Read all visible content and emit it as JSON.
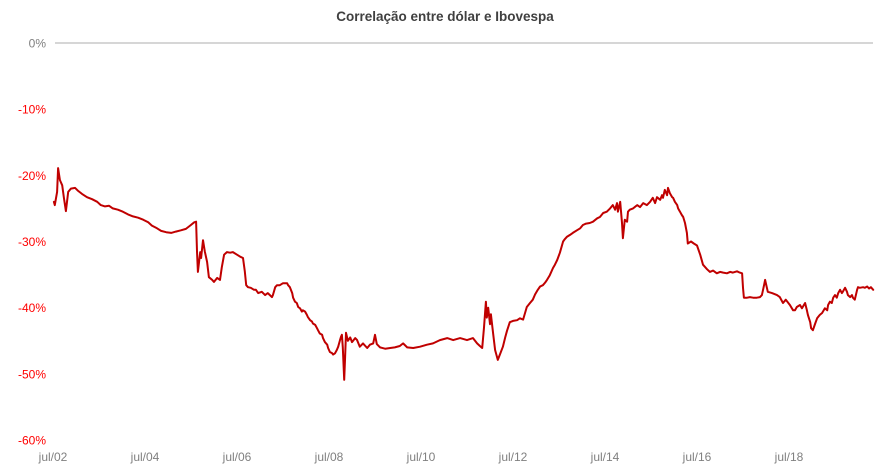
{
  "chart_data": {
    "type": "line",
    "title": "Correlação entre dólar e Ibovespa",
    "xlabel": "",
    "ylabel": "",
    "legend_position": "none",
    "grid": "horizontal line at 0% only",
    "xlim": [
      2002.4,
      2020.4
    ],
    "ylim": [
      -60,
      0
    ],
    "x_ticks": [
      {
        "t": 2002.5,
        "label": "jul/02"
      },
      {
        "t": 2004.5,
        "label": "jul/04"
      },
      {
        "t": 2006.5,
        "label": "jul/06"
      },
      {
        "t": 2008.5,
        "label": "jul/08"
      },
      {
        "t": 2010.5,
        "label": "jul/10"
      },
      {
        "t": 2012.5,
        "label": "jul/12"
      },
      {
        "t": 2014.5,
        "label": "jul/14"
      },
      {
        "t": 2016.5,
        "label": "jul/16"
      },
      {
        "t": 2018.5,
        "label": "jul/18"
      }
    ],
    "y_ticks": [
      {
        "v": 0,
        "label": "0%"
      },
      {
        "v": -10,
        "label": "-10%"
      },
      {
        "v": -20,
        "label": "-20%"
      },
      {
        "v": -30,
        "label": "-30%"
      },
      {
        "v": -40,
        "label": "-40%"
      },
      {
        "v": -50,
        "label": "-50%"
      },
      {
        "v": -60,
        "label": "-60%"
      }
    ],
    "colors": {
      "line": "#c00000",
      "y_tick_negative": "#ff0000",
      "y_tick_zero": "#808080",
      "x_tick": "#808080",
      "title": "#404040",
      "gridline": "#d6d6d6",
      "background": "#ffffff"
    },
    "points": [
      [
        2002.52,
        -24.0
      ],
      [
        2002.54,
        -24.5
      ],
      [
        2002.59,
        -22.5
      ],
      [
        2002.61,
        -18.9
      ],
      [
        2002.65,
        -20.7
      ],
      [
        2002.7,
        -21.5
      ],
      [
        2002.74,
        -23.5
      ],
      [
        2002.78,
        -25.4
      ],
      [
        2002.83,
        -22.5
      ],
      [
        2002.89,
        -22.0
      ],
      [
        2002.98,
        -21.9
      ],
      [
        2003.04,
        -22.3
      ],
      [
        2003.13,
        -22.8
      ],
      [
        2003.24,
        -23.3
      ],
      [
        2003.35,
        -23.6
      ],
      [
        2003.46,
        -24.0
      ],
      [
        2003.54,
        -24.5
      ],
      [
        2003.63,
        -24.7
      ],
      [
        2003.72,
        -24.6
      ],
      [
        2003.8,
        -25.0
      ],
      [
        2003.91,
        -25.2
      ],
      [
        2004.02,
        -25.5
      ],
      [
        2004.13,
        -25.9
      ],
      [
        2004.24,
        -26.2
      ],
      [
        2004.35,
        -26.4
      ],
      [
        2004.46,
        -26.7
      ],
      [
        2004.57,
        -27.1
      ],
      [
        2004.65,
        -27.6
      ],
      [
        2004.76,
        -28.0
      ],
      [
        2004.85,
        -28.4
      ],
      [
        2004.96,
        -28.6
      ],
      [
        2005.07,
        -28.7
      ],
      [
        2005.17,
        -28.5
      ],
      [
        2005.28,
        -28.3
      ],
      [
        2005.39,
        -28.1
      ],
      [
        2005.48,
        -27.6
      ],
      [
        2005.57,
        -27.1
      ],
      [
        2005.61,
        -27.0
      ],
      [
        2005.63,
        -31.5
      ],
      [
        2005.65,
        -34.6
      ],
      [
        2005.7,
        -31.6
      ],
      [
        2005.72,
        -32.5
      ],
      [
        2005.76,
        -29.8
      ],
      [
        2005.8,
        -31.5
      ],
      [
        2005.85,
        -33.1
      ],
      [
        2005.89,
        -35.4
      ],
      [
        2005.96,
        -35.8
      ],
      [
        2006.0,
        -36.1
      ],
      [
        2006.07,
        -35.5
      ],
      [
        2006.13,
        -35.8
      ],
      [
        2006.17,
        -33.9
      ],
      [
        2006.22,
        -32.0
      ],
      [
        2006.28,
        -31.6
      ],
      [
        2006.35,
        -31.7
      ],
      [
        2006.41,
        -31.6
      ],
      [
        2006.5,
        -32.0
      ],
      [
        2006.57,
        -32.3
      ],
      [
        2006.63,
        -32.5
      ],
      [
        2006.67,
        -34.5
      ],
      [
        2006.7,
        -36.6
      ],
      [
        2006.74,
        -36.9
      ],
      [
        2006.8,
        -37.0
      ],
      [
        2006.87,
        -37.3
      ],
      [
        2006.91,
        -37.3
      ],
      [
        2006.96,
        -37.8
      ],
      [
        2007.04,
        -37.6
      ],
      [
        2007.11,
        -38.1
      ],
      [
        2007.17,
        -37.8
      ],
      [
        2007.26,
        -38.4
      ],
      [
        2007.28,
        -38.1
      ],
      [
        2007.33,
        -36.9
      ],
      [
        2007.37,
        -36.6
      ],
      [
        2007.43,
        -36.6
      ],
      [
        2007.5,
        -36.3
      ],
      [
        2007.59,
        -36.3
      ],
      [
        2007.61,
        -36.6
      ],
      [
        2007.65,
        -36.9
      ],
      [
        2007.7,
        -37.8
      ],
      [
        2007.72,
        -38.5
      ],
      [
        2007.76,
        -39.1
      ],
      [
        2007.8,
        -39.3
      ],
      [
        2007.83,
        -39.9
      ],
      [
        2007.87,
        -40.1
      ],
      [
        2007.91,
        -40.6
      ],
      [
        2007.93,
        -40.4
      ],
      [
        2007.98,
        -40.6
      ],
      [
        2008.02,
        -41.1
      ],
      [
        2008.04,
        -41.4
      ],
      [
        2008.09,
        -41.9
      ],
      [
        2008.13,
        -42.1
      ],
      [
        2008.15,
        -42.4
      ],
      [
        2008.2,
        -42.6
      ],
      [
        2008.24,
        -43.1
      ],
      [
        2008.26,
        -43.4
      ],
      [
        2008.3,
        -43.9
      ],
      [
        2008.35,
        -44.1
      ],
      [
        2008.37,
        -44.6
      ],
      [
        2008.41,
        -45.2
      ],
      [
        2008.46,
        -45.6
      ],
      [
        2008.48,
        -46.1
      ],
      [
        2008.52,
        -46.7
      ],
      [
        2008.57,
        -46.9
      ],
      [
        2008.59,
        -47.1
      ],
      [
        2008.63,
        -46.9
      ],
      [
        2008.67,
        -46.4
      ],
      [
        2008.7,
        -45.9
      ],
      [
        2008.74,
        -44.9
      ],
      [
        2008.76,
        -44.4
      ],
      [
        2008.78,
        -44.1
      ],
      [
        2008.8,
        -46.0
      ],
      [
        2008.83,
        -50.9
      ],
      [
        2008.85,
        -47.5
      ],
      [
        2008.87,
        -43.8
      ],
      [
        2008.91,
        -45.0
      ],
      [
        2008.96,
        -44.5
      ],
      [
        2009.0,
        -45.2
      ],
      [
        2009.07,
        -44.6
      ],
      [
        2009.11,
        -44.9
      ],
      [
        2009.17,
        -45.9
      ],
      [
        2009.24,
        -45.4
      ],
      [
        2009.33,
        -46.1
      ],
      [
        2009.39,
        -45.6
      ],
      [
        2009.46,
        -45.4
      ],
      [
        2009.5,
        -44.1
      ],
      [
        2009.54,
        -45.5
      ],
      [
        2009.61,
        -46.0
      ],
      [
        2009.72,
        -46.2
      ],
      [
        2009.83,
        -46.1
      ],
      [
        2009.93,
        -46.0
      ],
      [
        2010.04,
        -45.8
      ],
      [
        2010.11,
        -45.4
      ],
      [
        2010.2,
        -46.0
      ],
      [
        2010.33,
        -46.1
      ],
      [
        2010.48,
        -45.9
      ],
      [
        2010.63,
        -45.6
      ],
      [
        2010.76,
        -45.4
      ],
      [
        2010.91,
        -44.9
      ],
      [
        2011.07,
        -44.6
      ],
      [
        2011.2,
        -44.9
      ],
      [
        2011.35,
        -44.6
      ],
      [
        2011.5,
        -44.9
      ],
      [
        2011.63,
        -44.6
      ],
      [
        2011.72,
        -45.4
      ],
      [
        2011.78,
        -45.8
      ],
      [
        2011.83,
        -46.1
      ],
      [
        2011.87,
        -43.0
      ],
      [
        2011.91,
        -39.1
      ],
      [
        2011.93,
        -41.5
      ],
      [
        2011.96,
        -40.0
      ],
      [
        2012.0,
        -42.5
      ],
      [
        2012.02,
        -41.0
      ],
      [
        2012.07,
        -44.0
      ],
      [
        2012.11,
        -46.4
      ],
      [
        2012.17,
        -47.9
      ],
      [
        2012.22,
        -47.0
      ],
      [
        2012.28,
        -45.9
      ],
      [
        2012.33,
        -44.5
      ],
      [
        2012.37,
        -43.5
      ],
      [
        2012.43,
        -42.2
      ],
      [
        2012.5,
        -42.0
      ],
      [
        2012.59,
        -41.9
      ],
      [
        2012.65,
        -41.6
      ],
      [
        2012.72,
        -41.8
      ],
      [
        2012.8,
        -39.9
      ],
      [
        2012.87,
        -39.3
      ],
      [
        2012.93,
        -38.8
      ],
      [
        2012.98,
        -38.0
      ],
      [
        2013.04,
        -37.3
      ],
      [
        2013.09,
        -36.8
      ],
      [
        2013.15,
        -36.6
      ],
      [
        2013.2,
        -36.2
      ],
      [
        2013.24,
        -35.8
      ],
      [
        2013.3,
        -35.1
      ],
      [
        2013.37,
        -34.0
      ],
      [
        2013.41,
        -33.5
      ],
      [
        2013.46,
        -32.8
      ],
      [
        2013.52,
        -31.7
      ],
      [
        2013.59,
        -30.0
      ],
      [
        2013.63,
        -29.6
      ],
      [
        2013.67,
        -29.3
      ],
      [
        2013.74,
        -29.0
      ],
      [
        2013.8,
        -28.7
      ],
      [
        2013.89,
        -28.3
      ],
      [
        2013.96,
        -28.0
      ],
      [
        2014.02,
        -27.5
      ],
      [
        2014.09,
        -27.3
      ],
      [
        2014.17,
        -27.2
      ],
      [
        2014.24,
        -27.0
      ],
      [
        2014.33,
        -26.5
      ],
      [
        2014.39,
        -26.3
      ],
      [
        2014.46,
        -25.7
      ],
      [
        2014.54,
        -25.5
      ],
      [
        2014.61,
        -25.0
      ],
      [
        2014.67,
        -24.5
      ],
      [
        2014.72,
        -25.2
      ],
      [
        2014.76,
        -24.2
      ],
      [
        2014.78,
        -25.5
      ],
      [
        2014.83,
        -24.0
      ],
      [
        2014.87,
        -27.2
      ],
      [
        2014.89,
        -29.5
      ],
      [
        2014.93,
        -26.7
      ],
      [
        2014.98,
        -27.0
      ],
      [
        2015.0,
        -25.5
      ],
      [
        2015.04,
        -25.2
      ],
      [
        2015.11,
        -25.0
      ],
      [
        2015.2,
        -24.5
      ],
      [
        2015.26,
        -24.8
      ],
      [
        2015.33,
        -24.2
      ],
      [
        2015.41,
        -24.5
      ],
      [
        2015.48,
        -24.0
      ],
      [
        2015.54,
        -23.4
      ],
      [
        2015.59,
        -24.2
      ],
      [
        2015.63,
        -23.3
      ],
      [
        2015.7,
        -23.7
      ],
      [
        2015.74,
        -23.0
      ],
      [
        2015.76,
        -23.4
      ],
      [
        2015.8,
        -22.2
      ],
      [
        2015.85,
        -23.0
      ],
      [
        2015.87,
        -21.9
      ],
      [
        2015.91,
        -22.7
      ],
      [
        2015.96,
        -23.3
      ],
      [
        2015.98,
        -23.4
      ],
      [
        2016.02,
        -24.0
      ],
      [
        2016.07,
        -24.5
      ],
      [
        2016.09,
        -25.0
      ],
      [
        2016.13,
        -25.5
      ],
      [
        2016.17,
        -26.0
      ],
      [
        2016.2,
        -26.3
      ],
      [
        2016.24,
        -27.2
      ],
      [
        2016.28,
        -28.7
      ],
      [
        2016.3,
        -30.3
      ],
      [
        2016.37,
        -30.0
      ],
      [
        2016.43,
        -30.3
      ],
      [
        2016.5,
        -30.6
      ],
      [
        2016.57,
        -32.0
      ],
      [
        2016.63,
        -33.5
      ],
      [
        2016.72,
        -34.2
      ],
      [
        2016.78,
        -34.6
      ],
      [
        2016.85,
        -34.4
      ],
      [
        2016.93,
        -34.8
      ],
      [
        2017.0,
        -34.6
      ],
      [
        2017.07,
        -34.7
      ],
      [
        2017.15,
        -34.8
      ],
      [
        2017.22,
        -34.6
      ],
      [
        2017.28,
        -34.7
      ],
      [
        2017.37,
        -34.5
      ],
      [
        2017.43,
        -34.7
      ],
      [
        2017.48,
        -34.8
      ],
      [
        2017.5,
        -37.0
      ],
      [
        2017.52,
        -38.5
      ],
      [
        2017.59,
        -38.5
      ],
      [
        2017.65,
        -38.4
      ],
      [
        2017.72,
        -38.5
      ],
      [
        2017.8,
        -38.5
      ],
      [
        2017.87,
        -38.4
      ],
      [
        2017.91,
        -38.1
      ],
      [
        2017.96,
        -36.5
      ],
      [
        2017.98,
        -35.8
      ],
      [
        2018.02,
        -37.0
      ],
      [
        2018.04,
        -37.6
      ],
      [
        2018.13,
        -37.8
      ],
      [
        2018.24,
        -38.1
      ],
      [
        2018.3,
        -38.4
      ],
      [
        2018.37,
        -39.3
      ],
      [
        2018.43,
        -38.8
      ],
      [
        2018.52,
        -39.6
      ],
      [
        2018.59,
        -40.4
      ],
      [
        2018.63,
        -40.4
      ],
      [
        2018.67,
        -39.9
      ],
      [
        2018.74,
        -39.6
      ],
      [
        2018.78,
        -40.1
      ],
      [
        2018.85,
        -39.3
      ],
      [
        2018.89,
        -40.4
      ],
      [
        2018.91,
        -41.1
      ],
      [
        2018.96,
        -42.2
      ],
      [
        2018.98,
        -43.1
      ],
      [
        2019.02,
        -43.4
      ],
      [
        2019.07,
        -42.4
      ],
      [
        2019.11,
        -41.6
      ],
      [
        2019.17,
        -41.1
      ],
      [
        2019.22,
        -40.8
      ],
      [
        2019.28,
        -40.1
      ],
      [
        2019.33,
        -40.4
      ],
      [
        2019.35,
        -39.6
      ],
      [
        2019.39,
        -39.1
      ],
      [
        2019.43,
        -39.3
      ],
      [
        2019.46,
        -38.5
      ],
      [
        2019.5,
        -38.1
      ],
      [
        2019.54,
        -38.5
      ],
      [
        2019.57,
        -37.8
      ],
      [
        2019.61,
        -37.3
      ],
      [
        2019.65,
        -37.8
      ],
      [
        2019.67,
        -37.6
      ],
      [
        2019.72,
        -37.0
      ],
      [
        2019.76,
        -37.6
      ],
      [
        2019.78,
        -38.1
      ],
      [
        2019.83,
        -38.4
      ],
      [
        2019.87,
        -38.1
      ],
      [
        2019.89,
        -38.5
      ],
      [
        2019.93,
        -38.8
      ],
      [
        2019.98,
        -37.3
      ],
      [
        2020.0,
        -36.9
      ],
      [
        2020.04,
        -37.0
      ],
      [
        2020.11,
        -36.9
      ],
      [
        2020.15,
        -37.0
      ],
      [
        2020.2,
        -36.8
      ],
      [
        2020.24,
        -37.1
      ],
      [
        2020.28,
        -36.9
      ],
      [
        2020.33,
        -37.3
      ]
    ]
  }
}
